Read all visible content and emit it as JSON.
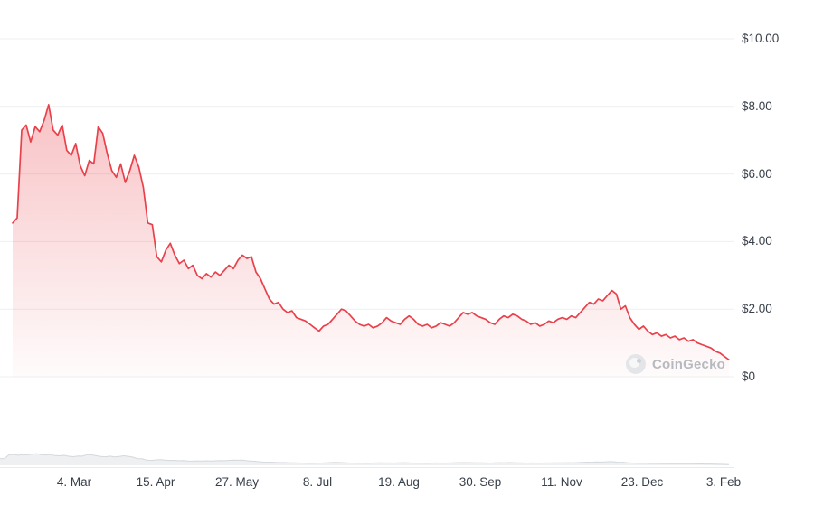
{
  "chart_data": {
    "type": "area",
    "title": "",
    "legend": "none",
    "grid": "horizontal",
    "y_axis_side": "right",
    "ylim": [
      0,
      10
    ],
    "y_tick_labels": [
      "$10.00",
      "$8.00",
      "$6.00",
      "$4.00",
      "$2.00",
      "$0"
    ],
    "y_tick_values": [
      10,
      8,
      6,
      4,
      2,
      0
    ],
    "x_tick_labels": [
      "4. Mar",
      "15. Apr",
      "27. May",
      "8. Jul",
      "19. Aug",
      "30. Sep",
      "11. Nov",
      "23. Dec",
      "3. Feb"
    ],
    "watermark": "CoinGecko",
    "line_color": "#e9414b",
    "fill_color": "#e9414b",
    "grid_color": "#edeff1",
    "series": [
      {
        "name": "price_usd",
        "values": [
          4.55,
          4.7,
          7.3,
          7.45,
          6.95,
          7.4,
          7.25,
          7.6,
          8.05,
          7.3,
          7.15,
          7.45,
          6.7,
          6.55,
          6.9,
          6.25,
          5.95,
          6.4,
          6.3,
          7.4,
          7.2,
          6.6,
          6.1,
          5.9,
          6.3,
          5.75,
          6.1,
          6.55,
          6.2,
          5.6,
          4.55,
          4.5,
          3.55,
          3.4,
          3.75,
          3.95,
          3.6,
          3.35,
          3.45,
          3.2,
          3.3,
          3.0,
          2.9,
          3.05,
          2.95,
          3.1,
          3.0,
          3.15,
          3.3,
          3.2,
          3.45,
          3.6,
          3.5,
          3.55,
          3.1,
          2.9,
          2.6,
          2.3,
          2.15,
          2.2,
          2.0,
          1.9,
          1.95,
          1.75,
          1.7,
          1.65,
          1.55,
          1.45,
          1.35,
          1.5,
          1.55,
          1.7,
          1.85,
          2.0,
          1.95,
          1.8,
          1.65,
          1.55,
          1.5,
          1.55,
          1.45,
          1.5,
          1.6,
          1.75,
          1.65,
          1.6,
          1.55,
          1.7,
          1.8,
          1.7,
          1.55,
          1.5,
          1.55,
          1.45,
          1.5,
          1.6,
          1.55,
          1.5,
          1.6,
          1.75,
          1.9,
          1.85,
          1.9,
          1.8,
          1.75,
          1.7,
          1.6,
          1.55,
          1.7,
          1.8,
          1.75,
          1.85,
          1.8,
          1.7,
          1.65,
          1.55,
          1.6,
          1.5,
          1.55,
          1.65,
          1.6,
          1.7,
          1.75,
          1.7,
          1.8,
          1.75,
          1.9,
          2.05,
          2.2,
          2.15,
          2.3,
          2.25,
          2.4,
          2.55,
          2.45,
          2.0,
          2.1,
          1.75,
          1.55,
          1.4,
          1.5,
          1.35,
          1.25,
          1.3,
          1.2,
          1.25,
          1.15,
          1.2,
          1.1,
          1.15,
          1.05,
          1.1,
          1.0,
          0.95,
          0.9,
          0.85,
          0.75,
          0.7,
          0.6,
          0.5
        ]
      }
    ]
  }
}
